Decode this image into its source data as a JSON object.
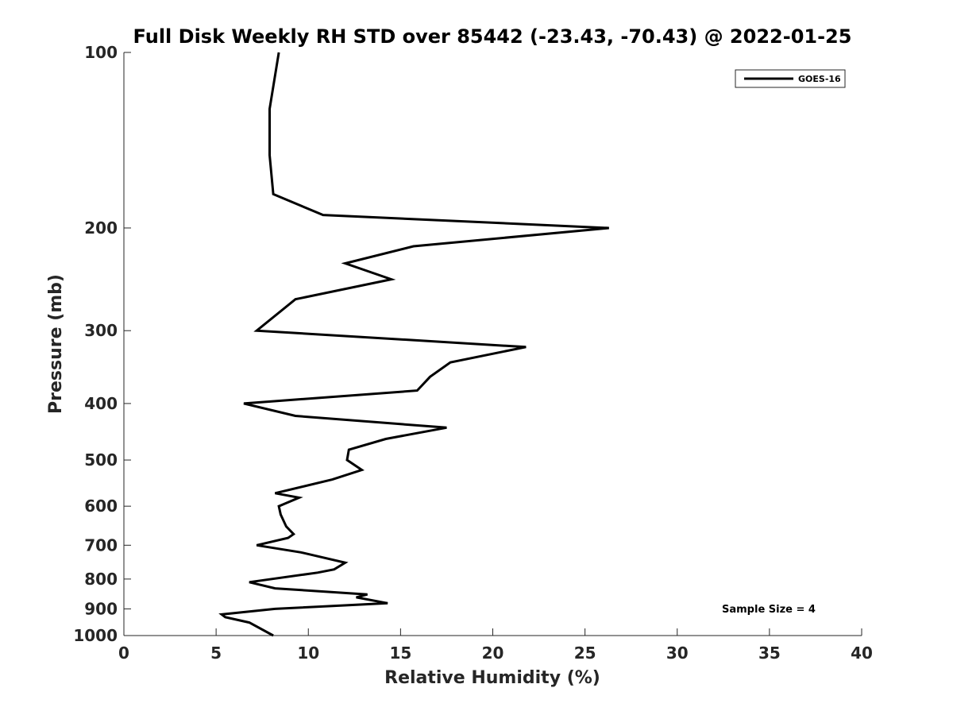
{
  "chart_data": {
    "type": "line",
    "title": "Full Disk Weekly RH STD over 85442 (-23.43, -70.43) @ 2022-01-25",
    "xlabel": "Relative Humidity (%)",
    "ylabel": "Pressure (mb)",
    "xlim": [
      0,
      40
    ],
    "ylim": [
      1000,
      100
    ],
    "yscale": "log",
    "y_inverted": true,
    "grid": false,
    "legend_position": "top-right",
    "x_ticks": [
      "0",
      "5",
      "10",
      "15",
      "20",
      "25",
      "30",
      "35",
      "40"
    ],
    "y_ticks": [
      "100",
      "200",
      "300",
      "400",
      "500",
      "600",
      "700",
      "800",
      "900",
      "1000"
    ],
    "annotation": "Sample Size = 4",
    "series": [
      {
        "name": "GOES-16",
        "color": "#000000",
        "points": [
          [
            8.4,
            100
          ],
          [
            7.9,
            125
          ],
          [
            7.9,
            150
          ],
          [
            8.1,
            175
          ],
          [
            10.8,
            190
          ],
          [
            26.3,
            200
          ],
          [
            15.7,
            215
          ],
          [
            12.0,
            230
          ],
          [
            14.5,
            245
          ],
          [
            9.3,
            265
          ],
          [
            7.2,
            300
          ],
          [
            21.8,
            320
          ],
          [
            17.7,
            340
          ],
          [
            16.6,
            360
          ],
          [
            15.9,
            380
          ],
          [
            6.5,
            400
          ],
          [
            9.3,
            420
          ],
          [
            17.5,
            440
          ],
          [
            14.2,
            460
          ],
          [
            12.2,
            480
          ],
          [
            12.1,
            500
          ],
          [
            12.9,
            520
          ],
          [
            11.3,
            540
          ],
          [
            8.2,
            570
          ],
          [
            9.5,
            580
          ],
          [
            8.4,
            600
          ],
          [
            8.5,
            620
          ],
          [
            8.8,
            650
          ],
          [
            9.2,
            670
          ],
          [
            8.9,
            680
          ],
          [
            7.2,
            700
          ],
          [
            9.6,
            720
          ],
          [
            12.0,
            750
          ],
          [
            11.4,
            770
          ],
          [
            10.5,
            780
          ],
          [
            6.8,
            810
          ],
          [
            8.2,
            830
          ],
          [
            13.2,
            850
          ],
          [
            12.6,
            860
          ],
          [
            14.3,
            880
          ],
          [
            8.2,
            900
          ],
          [
            5.3,
            920
          ],
          [
            5.5,
            930
          ],
          [
            6.8,
            950
          ],
          [
            8.1,
            1000
          ]
        ]
      }
    ]
  }
}
